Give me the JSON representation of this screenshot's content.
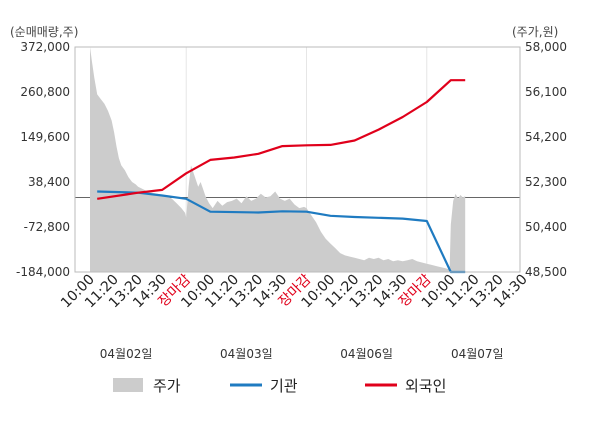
{
  "chart_data": {
    "type": "line",
    "left_axis": {
      "unit_label": "(순매매량,주)",
      "ticks": [
        372000,
        260800,
        149600,
        38400,
        -72800,
        -184000
      ],
      "tick_labels": [
        "372,000",
        "260,800",
        "149,600",
        "38,400",
        "-72,800",
        "-184,000"
      ],
      "ylim": [
        -184000,
        372000
      ]
    },
    "right_axis": {
      "unit_label": "(주가,원)",
      "ticks": [
        58000,
        56100,
        54200,
        52300,
        50400,
        48500
      ],
      "tick_labels": [
        "58,000",
        "56,100",
        "54,200",
        "52,300",
        "50,400",
        "48,500"
      ],
      "ylim": [
        48500,
        58000
      ]
    },
    "x_ticks": [
      {
        "label": "10:00",
        "close": false
      },
      {
        "label": "11:20",
        "close": false
      },
      {
        "label": "13:20",
        "close": false
      },
      {
        "label": "14:30",
        "close": false
      },
      {
        "label": "장마감",
        "close": true
      },
      {
        "label": "10:00",
        "close": false
      },
      {
        "label": "11:20",
        "close": false
      },
      {
        "label": "13:20",
        "close": false
      },
      {
        "label": "14:30",
        "close": false
      },
      {
        "label": "장마감",
        "close": true
      },
      {
        "label": "10:00",
        "close": false
      },
      {
        "label": "11:20",
        "close": false
      },
      {
        "label": "13:20",
        "close": false
      },
      {
        "label": "14:30",
        "close": false
      },
      {
        "label": "장마감",
        "close": true
      },
      {
        "label": "10:00",
        "close": false
      },
      {
        "label": "11:20",
        "close": false
      },
      {
        "label": "13:20",
        "close": false
      },
      {
        "label": "14:30",
        "close": false
      }
    ],
    "dates": [
      "04월02일",
      "04월03일",
      "04월06일",
      "04월07일"
    ],
    "legend": [
      {
        "name": "주가",
        "color": "#cccccc",
        "kind": "area"
      },
      {
        "name": "기관",
        "color": "#1f7bc1",
        "kind": "line"
      },
      {
        "name": "외국인",
        "color": "#e0001b",
        "kind": "line"
      }
    ],
    "series": [
      {
        "name": "기관",
        "color": "#1f7bc1",
        "points": [
          [
            0.3,
            15000
          ],
          [
            2,
            12000
          ],
          [
            3,
            5000
          ],
          [
            4,
            -3000
          ],
          [
            5,
            -35000
          ],
          [
            7,
            -37000
          ],
          [
            8,
            -34000
          ],
          [
            9,
            -35000
          ],
          [
            10,
            -45000
          ],
          [
            11,
            -48000
          ],
          [
            12,
            -50000
          ],
          [
            13,
            -52000
          ],
          [
            14,
            -58000
          ],
          [
            15,
            -184000
          ],
          [
            15.6,
            -184000
          ]
        ]
      },
      {
        "name": "외국인",
        "color": "#e0001b",
        "points": [
          [
            0.3,
            -3000
          ],
          [
            2,
            12000
          ],
          [
            3,
            19000
          ],
          [
            4,
            60000
          ],
          [
            5,
            93000
          ],
          [
            6,
            99000
          ],
          [
            7,
            108000
          ],
          [
            8,
            127000
          ],
          [
            9,
            129000
          ],
          [
            10,
            130000
          ],
          [
            11,
            141000
          ],
          [
            12,
            168000
          ],
          [
            13,
            199000
          ],
          [
            14,
            236000
          ],
          [
            15,
            290000
          ],
          [
            15.6,
            290000
          ]
        ]
      },
      {
        "name": "주가",
        "color": "#cccccc",
        "kind": "area",
        "points": [
          [
            0,
            58000
          ],
          [
            0.08,
            57400
          ],
          [
            0.18,
            56700
          ],
          [
            0.3,
            56000
          ],
          [
            0.45,
            55800
          ],
          [
            0.6,
            55600
          ],
          [
            0.75,
            55300
          ],
          [
            0.9,
            54900
          ],
          [
            1.0,
            54400
          ],
          [
            1.1,
            53800
          ],
          [
            1.2,
            53300
          ],
          [
            1.3,
            53000
          ],
          [
            1.45,
            52800
          ],
          [
            1.6,
            52500
          ],
          [
            1.75,
            52300
          ],
          [
            1.9,
            52200
          ],
          [
            2.0,
            52100
          ],
          [
            2.2,
            52000
          ],
          [
            2.4,
            51900
          ],
          [
            2.6,
            51850
          ],
          [
            2.8,
            51800
          ],
          [
            3.0,
            51750
          ],
          [
            3.2,
            51700
          ],
          [
            3.4,
            51600
          ],
          [
            3.6,
            51400
          ],
          [
            3.8,
            51200
          ],
          [
            3.95,
            51000
          ],
          [
            4.0,
            50800
          ],
          [
            4.1,
            52100
          ],
          [
            4.2,
            53000
          ],
          [
            4.3,
            52700
          ],
          [
            4.4,
            52400
          ],
          [
            4.5,
            52100
          ],
          [
            4.6,
            52300
          ],
          [
            4.7,
            52000
          ],
          [
            4.8,
            51700
          ],
          [
            4.95,
            51400
          ],
          [
            5.1,
            51200
          ],
          [
            5.3,
            51500
          ],
          [
            5.5,
            51300
          ],
          [
            5.7,
            51450
          ],
          [
            5.9,
            51500
          ],
          [
            6.1,
            51600
          ],
          [
            6.3,
            51400
          ],
          [
            6.5,
            51700
          ],
          [
            6.7,
            51500
          ],
          [
            6.9,
            51600
          ],
          [
            7.1,
            51800
          ],
          [
            7.3,
            51650
          ],
          [
            7.5,
            51700
          ],
          [
            7.7,
            51900
          ],
          [
            7.9,
            51600
          ],
          [
            8.1,
            51500
          ],
          [
            8.3,
            51600
          ],
          [
            8.5,
            51350
          ],
          [
            8.7,
            51200
          ],
          [
            8.9,
            51250
          ],
          [
            9.0,
            51200
          ],
          [
            9.2,
            50900
          ],
          [
            9.4,
            50600
          ],
          [
            9.6,
            50200
          ],
          [
            9.8,
            49900
          ],
          [
            10.0,
            49700
          ],
          [
            10.2,
            49500
          ],
          [
            10.4,
            49300
          ],
          [
            10.6,
            49200
          ],
          [
            10.8,
            49150
          ],
          [
            11.0,
            49100
          ],
          [
            11.2,
            49050
          ],
          [
            11.4,
            49000
          ],
          [
            11.6,
            49100
          ],
          [
            11.8,
            49050
          ],
          [
            12.0,
            49100
          ],
          [
            12.2,
            49000
          ],
          [
            12.4,
            49050
          ],
          [
            12.6,
            48950
          ],
          [
            12.8,
            49000
          ],
          [
            13.0,
            48950
          ],
          [
            13.2,
            49000
          ],
          [
            13.4,
            49050
          ],
          [
            13.6,
            48950
          ],
          [
            13.8,
            48900
          ],
          [
            14.0,
            48850
          ],
          [
            14.2,
            48800
          ],
          [
            14.4,
            48750
          ],
          [
            14.6,
            48700
          ],
          [
            14.8,
            48650
          ],
          [
            14.95,
            48600
          ],
          [
            15.0,
            50500
          ],
          [
            15.1,
            51500
          ],
          [
            15.2,
            51800
          ],
          [
            15.3,
            51600
          ],
          [
            15.4,
            51750
          ],
          [
            15.5,
            51650
          ],
          [
            15.6,
            51700
          ]
        ]
      }
    ]
  }
}
